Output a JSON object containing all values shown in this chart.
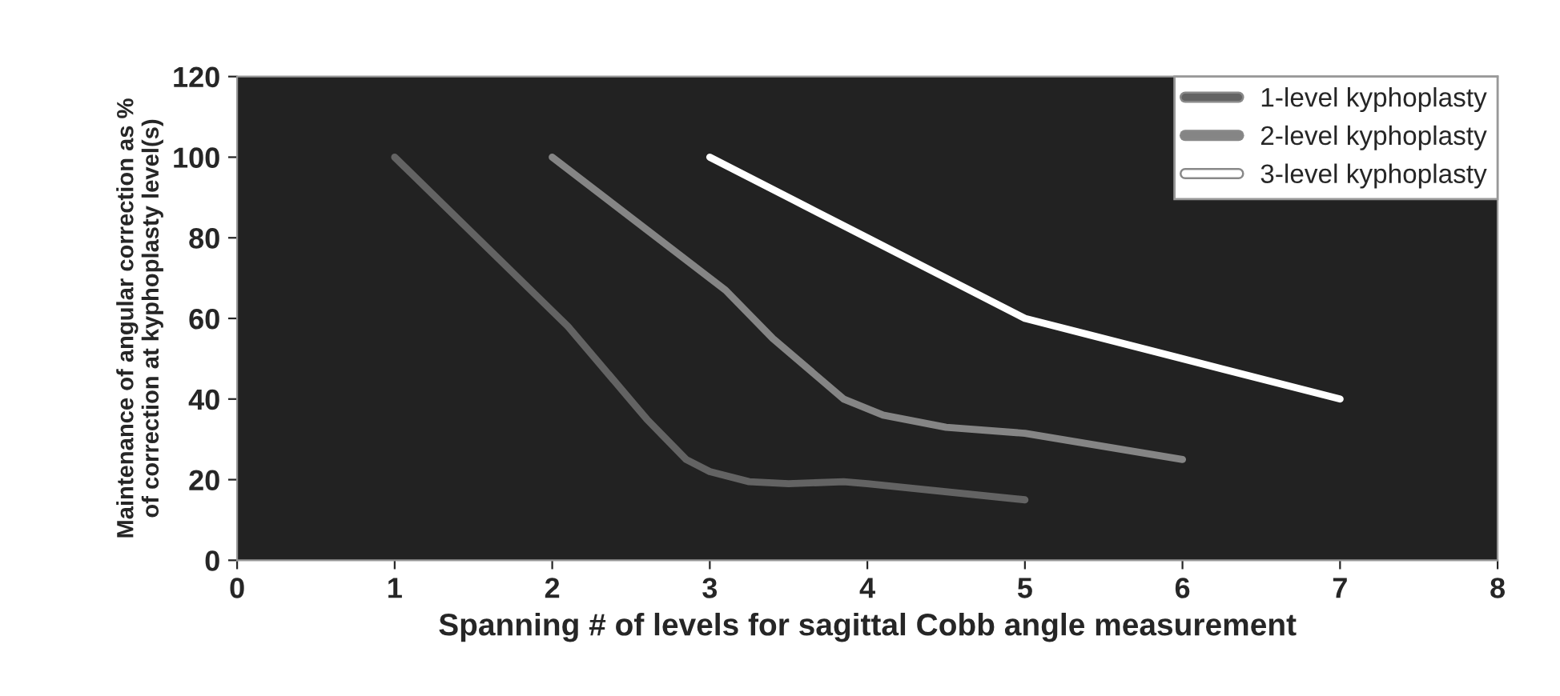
{
  "chart_data": {
    "type": "line",
    "xlabel": "Spanning # of levels for sagittal Cobb angle measurement",
    "ylabel": "Maintenance of angular correction as %\nof correction at kyphoplasty level(s)",
    "xlim": [
      0,
      8
    ],
    "xticks": [
      0,
      1,
      2,
      3,
      4,
      5,
      6,
      7,
      8
    ],
    "ylim": [
      0,
      120
    ],
    "yticks": [
      0,
      20,
      40,
      60,
      80,
      100,
      120
    ],
    "grid": false,
    "legend": "top right",
    "marker": "none",
    "line_style": "solid",
    "series": [
      {
        "name": "1-level kyphoplasty",
        "color": "#636363",
        "x": [
          1,
          2.1,
          2.6,
          2.85,
          3.0,
          3.25,
          3.5,
          3.85,
          4.0,
          5.0
        ],
        "values": [
          100,
          58,
          35,
          25,
          22,
          19.5,
          19,
          19.5,
          19,
          15
        ]
      },
      {
        "name": "2-level kyphoplasty",
        "color": "#858585",
        "x": [
          2,
          3.1,
          3.4,
          3.85,
          4.1,
          4.5,
          5.0,
          6.0
        ],
        "values": [
          100,
          67,
          55,
          40,
          36,
          33,
          31.5,
          25
        ]
      },
      {
        "name": "3-level kyphoplasty",
        "color": "#ffffff",
        "x": [
          3,
          3.6,
          4.0,
          4.5,
          5.0,
          5.4,
          6.0,
          7.0
        ],
        "values": [
          100,
          88,
          80,
          70,
          60,
          56,
          50,
          40
        ]
      }
    ]
  }
}
